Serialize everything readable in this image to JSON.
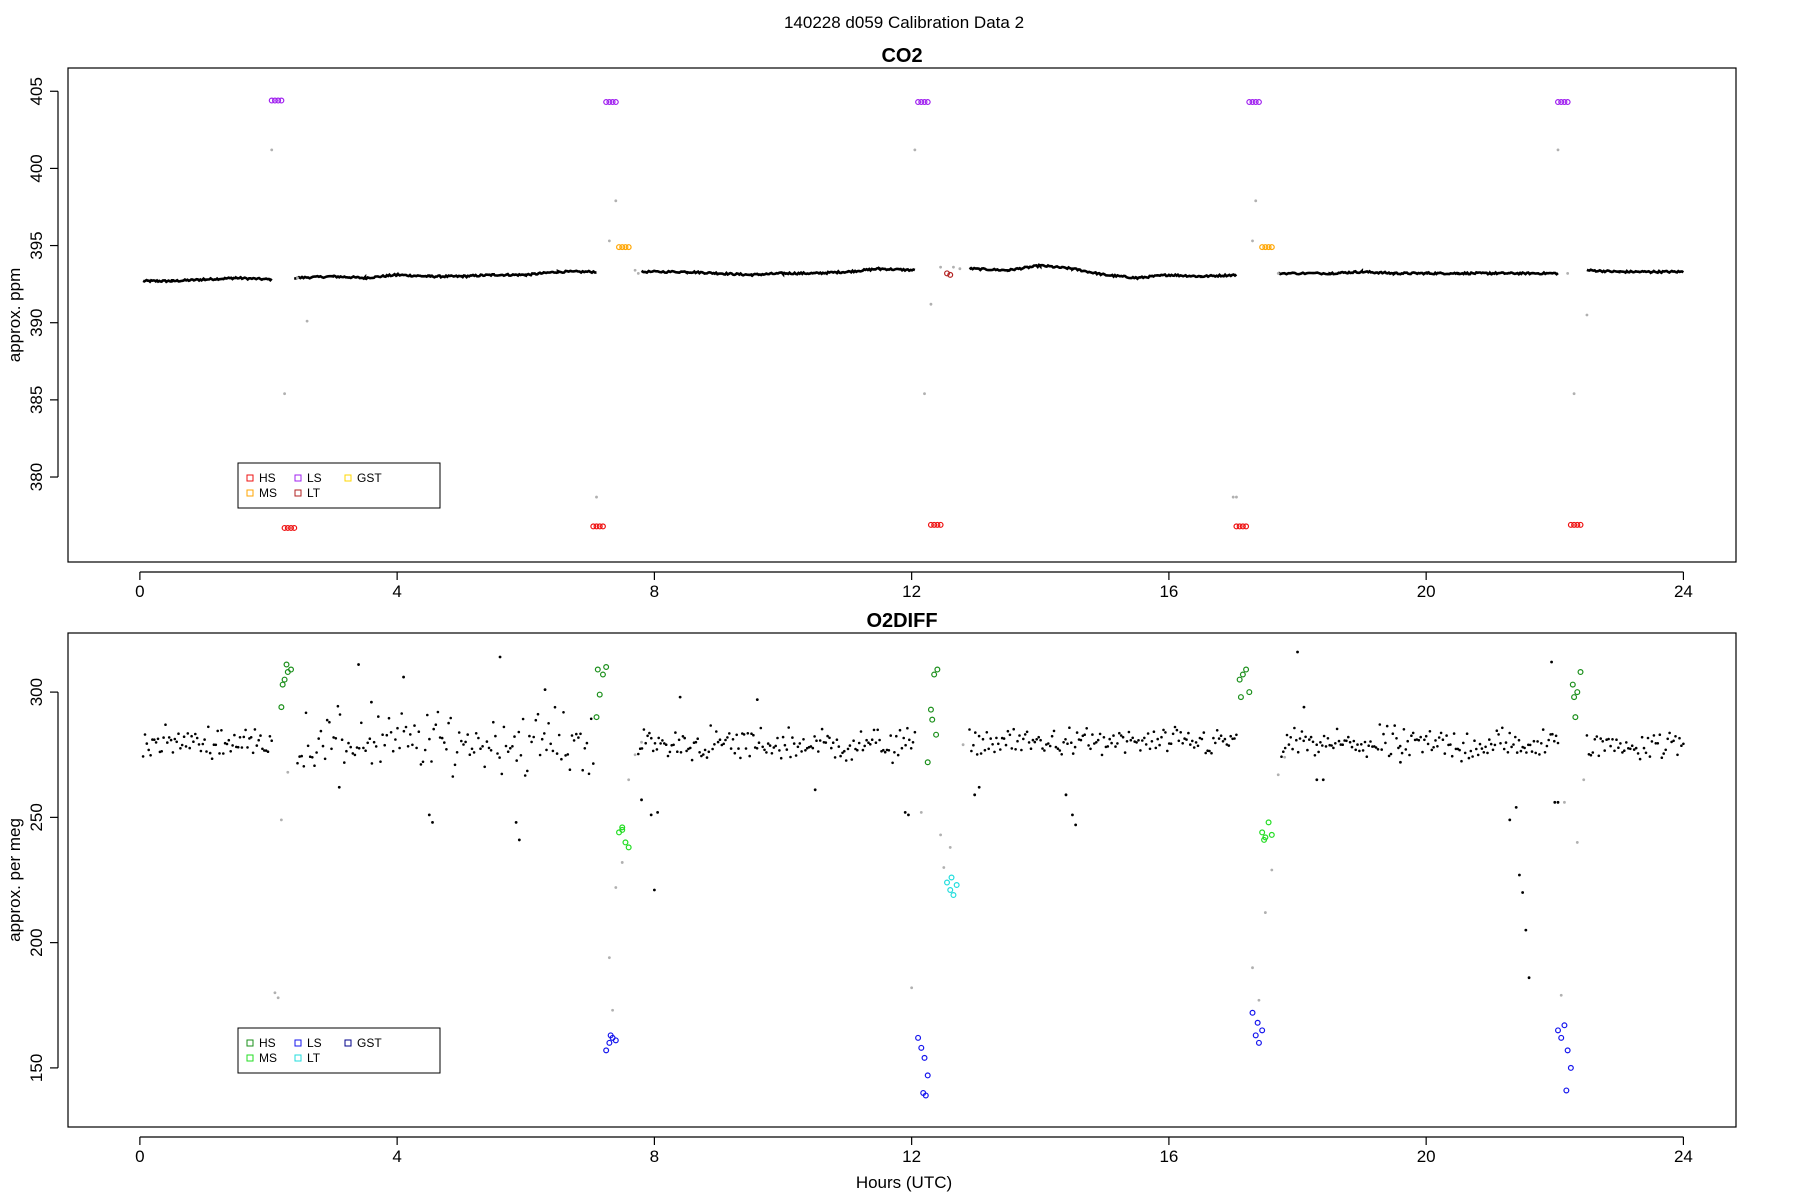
{
  "figure": {
    "title": "140228   d059   Calibration Data 2",
    "xlabel": "Hours (UTC)"
  },
  "chart_data": [
    {
      "type": "scatter",
      "title": "CO2",
      "xlabel": "",
      "ylabel": "approx. ppm",
      "xlim": [
        -0.9,
        24.6
      ],
      "ylim": [
        375.4,
        405.6
      ],
      "xticks": [
        0,
        4,
        8,
        12,
        16,
        20,
        24
      ],
      "yticks": [
        380,
        385,
        390,
        395,
        400,
        405
      ],
      "legend_position": "bottom-left",
      "legend": [
        {
          "name": "HS",
          "color": "#ee1111"
        },
        {
          "name": "MS",
          "color": "#ffa500"
        },
        {
          "name": "LS",
          "color": "#a020f0"
        },
        {
          "name": "LT",
          "color": "#b22222"
        },
        {
          "name": "GST",
          "color": "#ffd700"
        }
      ],
      "baseline": {
        "name": "sample",
        "color": "#000000",
        "segments": [
          {
            "x": [
              0.05,
              0.5,
              1.0,
              1.5,
              2.05
            ],
            "y": [
              392.7,
              392.7,
              392.8,
              392.9,
              392.8
            ]
          },
          {
            "x": [
              2.4,
              3.0,
              3.5,
              4.0,
              4.5,
              5.0,
              5.5,
              6.0,
              6.5,
              7.1
            ],
            "y": [
              392.9,
              393.0,
              392.9,
              393.1,
              393.0,
              393.0,
              393.1,
              393.1,
              393.3,
              393.3
            ]
          },
          {
            "x": [
              7.8,
              8.5,
              9.0,
              9.5,
              10.0,
              10.5,
              11.0,
              11.5,
              12.05
            ],
            "y": [
              393.3,
              393.3,
              393.2,
              393.1,
              393.2,
              393.2,
              393.3,
              393.5,
              393.4
            ]
          },
          {
            "x": [
              12.9,
              13.5,
              14.0,
              14.5,
              15.0,
              15.5,
              16.0,
              16.5,
              17.05
            ],
            "y": [
              393.5,
              393.4,
              393.7,
              393.5,
              393.1,
              392.9,
              393.1,
              393.0,
              393.1
            ]
          },
          {
            "x": [
              17.7,
              18.5,
              19.0,
              19.5,
              20.0,
              20.5,
              21.0,
              21.5,
              22.05
            ],
            "y": [
              393.2,
              393.2,
              393.3,
              393.2,
              393.2,
              393.2,
              393.2,
              393.2,
              393.2
            ]
          },
          {
            "x": [
              22.5,
              23.0,
              23.5,
              24.0
            ],
            "y": [
              393.4,
              393.3,
              393.3,
              393.3
            ]
          }
        ]
      },
      "series": [
        {
          "name": "LS",
          "color": "#a020f0",
          "marker": "ring",
          "x": [
            2.05,
            2.1,
            2.15,
            2.2,
            7.25,
            7.3,
            7.35,
            7.4,
            12.1,
            12.15,
            12.2,
            12.25,
            17.25,
            17.3,
            17.35,
            17.4,
            22.05,
            22.1,
            22.15,
            22.2
          ],
          "y": [
            404.4,
            404.4,
            404.4,
            404.4,
            404.3,
            404.3,
            404.3,
            404.3,
            404.3,
            404.3,
            404.3,
            404.3,
            404.3,
            404.3,
            404.3,
            404.3,
            404.3,
            404.3,
            404.3,
            404.3
          ]
        },
        {
          "name": "HS",
          "color": "#ee1111",
          "marker": "ring",
          "x": [
            2.25,
            2.3,
            2.35,
            2.4,
            7.05,
            7.1,
            7.15,
            7.2,
            12.3,
            12.35,
            12.4,
            12.45,
            17.05,
            17.1,
            17.15,
            17.2,
            22.25,
            22.3,
            22.35,
            22.4
          ],
          "y": [
            376.7,
            376.7,
            376.7,
            376.7,
            376.8,
            376.8,
            376.8,
            376.8,
            376.9,
            376.9,
            376.9,
            376.9,
            376.8,
            376.8,
            376.8,
            376.8,
            376.9,
            376.9,
            376.9,
            376.9
          ]
        },
        {
          "name": "MS",
          "color": "#ffa500",
          "marker": "ring",
          "x": [
            7.45,
            7.5,
            7.55,
            7.6,
            17.45,
            17.5,
            17.55,
            17.6
          ],
          "y": [
            394.9,
            394.9,
            394.9,
            394.9,
            394.9,
            394.9,
            394.9,
            394.9
          ]
        },
        {
          "name": "LT",
          "color": "#b22222",
          "marker": "ring",
          "x": [
            12.55,
            12.6
          ],
          "y": [
            393.2,
            393.1
          ]
        },
        {
          "name": "transition",
          "color": "#b0b0b0",
          "marker": "dot",
          "x": [
            2.05,
            2.45,
            2.6,
            2.25,
            7.3,
            7.4,
            7.7,
            7.75,
            12.05,
            12.3,
            12.45,
            12.2,
            12.65,
            12.75,
            17.0,
            17.3,
            17.35,
            17.7,
            22.05,
            22.3,
            22.5,
            22.2,
            7.1,
            17.05
          ],
          "y": [
            401.2,
            392.9,
            390.1,
            385.4,
            395.3,
            397.9,
            393.4,
            393.2,
            401.2,
            391.2,
            393.6,
            385.4,
            393.6,
            393.5,
            378.7,
            395.3,
            397.9,
            393.2,
            401.2,
            385.4,
            390.5,
            393.2,
            378.7,
            378.7
          ]
        }
      ]
    },
    {
      "type": "scatter",
      "title": "O2DIFF",
      "xlabel": "Hours (UTC)",
      "ylabel": "approx. per meg",
      "xlim": [
        -0.9,
        24.6
      ],
      "ylim": [
        132,
        318
      ],
      "xticks": [
        0,
        4,
        8,
        12,
        16,
        20,
        24
      ],
      "yticks": [
        150,
        200,
        250,
        300
      ],
      "legend_position": "bottom-left",
      "legend": [
        {
          "name": "HS",
          "color": "#1a8f1a"
        },
        {
          "name": "MS",
          "color": "#22dd22"
        },
        {
          "name": "LS",
          "color": "#1515ee"
        },
        {
          "name": "LT",
          "color": "#22dddd"
        },
        {
          "name": "GST",
          "color": "#00008b"
        }
      ],
      "noise": {
        "name": "sample",
        "color": "#000000",
        "segments": [
          {
            "x0": 0.05,
            "x1": 2.05,
            "center": 280,
            "spread": 4,
            "n": 70
          },
          {
            "x0": 2.45,
            "x1": 7.05,
            "center": 280,
            "spread": 9,
            "n": 140
          },
          {
            "x0": 7.75,
            "x1": 12.05,
            "center": 279,
            "spread": 5,
            "n": 150
          },
          {
            "x0": 12.9,
            "x1": 17.05,
            "center": 280,
            "spread": 4,
            "n": 140
          },
          {
            "x0": 17.75,
            "x1": 22.05,
            "center": 279,
            "spread": 5,
            "n": 150
          },
          {
            "x0": 22.5,
            "x1": 24.0,
            "center": 279,
            "spread": 4,
            "n": 50
          }
        ],
        "outliers": {
          "x": [
            3.1,
            3.4,
            3.6,
            4.1,
            4.5,
            4.55,
            5.6,
            5.85,
            5.9,
            6.3,
            7.8,
            7.95,
            8.0,
            8.05,
            8.4,
            9.6,
            10.5,
            11.9,
            11.95,
            12.98,
            13.05,
            14.4,
            14.5,
            14.55,
            18.0,
            18.1,
            18.3,
            18.4,
            19.6,
            21.3,
            21.4,
            21.45,
            21.5,
            21.55,
            21.6,
            21.95,
            22.0,
            22.05
          ],
          "y": [
            262,
            311,
            296,
            306,
            251,
            248,
            314,
            248,
            241,
            301,
            257,
            251,
            221,
            252,
            298,
            297,
            261,
            252,
            251,
            259,
            262,
            259,
            251,
            247,
            316,
            294,
            265,
            265,
            272,
            249,
            254,
            227,
            220,
            205,
            186,
            312,
            256,
            256
          ]
        }
      },
      "series": [
        {
          "name": "HS",
          "color": "#1a8f1a",
          "marker": "ring",
          "x": [
            2.2,
            2.25,
            2.3,
            2.35,
            2.22,
            2.28,
            7.1,
            7.15,
            7.2,
            7.25,
            7.12,
            12.3,
            12.35,
            12.4,
            12.32,
            12.38,
            12.25,
            17.1,
            17.15,
            17.2,
            17.25,
            17.12,
            22.3,
            22.35,
            22.4,
            22.32,
            22.28
          ],
          "y": [
            294,
            305,
            308,
            309,
            303,
            311,
            290,
            299,
            307,
            310,
            309,
            293,
            307,
            309,
            289,
            283,
            272,
            305,
            307,
            309,
            300,
            298,
            298,
            300,
            308,
            290,
            303
          ]
        },
        {
          "name": "MS",
          "color": "#22dd22",
          "marker": "ring",
          "x": [
            7.45,
            7.5,
            7.55,
            7.6,
            7.5,
            17.45,
            17.5,
            17.55,
            17.6,
            17.48
          ],
          "y": [
            244,
            245,
            240,
            238,
            246,
            244,
            242,
            248,
            243,
            241
          ]
        },
        {
          "name": "LS",
          "color": "#1515ee",
          "marker": "ring",
          "x": [
            2.25,
            7.25,
            7.3,
            7.35,
            7.4,
            7.32,
            12.1,
            12.15,
            12.2,
            12.25,
            12.18,
            12.22,
            17.3,
            17.35,
            17.4,
            17.45,
            17.38,
            22.05,
            22.1,
            22.15,
            22.2,
            22.25,
            22.18
          ],
          "y": [
            152,
            157,
            160,
            162,
            161,
            163,
            162,
            158,
            154,
            147,
            140,
            139,
            172,
            163,
            160,
            165,
            168,
            165,
            162,
            167,
            157,
            150,
            141
          ]
        },
        {
          "name": "LT",
          "color": "#22dddd",
          "marker": "ring",
          "x": [
            12.55,
            12.6,
            12.65,
            12.7,
            12.62
          ],
          "y": [
            224,
            221,
            219,
            223,
            226
          ]
        },
        {
          "name": "transition",
          "color": "#b0b0b0",
          "marker": "dot",
          "x": [
            2.1,
            2.15,
            2.2,
            2.3,
            7.3,
            7.35,
            7.4,
            7.5,
            7.6,
            7.7,
            7.8,
            12.0,
            12.15,
            12.45,
            12.5,
            12.6,
            12.8,
            17.3,
            17.4,
            17.5,
            17.6,
            17.7,
            17.8,
            22.1,
            22.15,
            22.35,
            22.45
          ],
          "y": [
            180,
            178,
            249,
            268,
            194,
            173,
            222,
            232,
            265,
            275,
            280,
            182,
            252,
            243,
            230,
            238,
            279,
            190,
            177,
            212,
            229,
            267,
            274,
            179,
            256,
            240,
            265
          ]
        }
      ]
    }
  ]
}
